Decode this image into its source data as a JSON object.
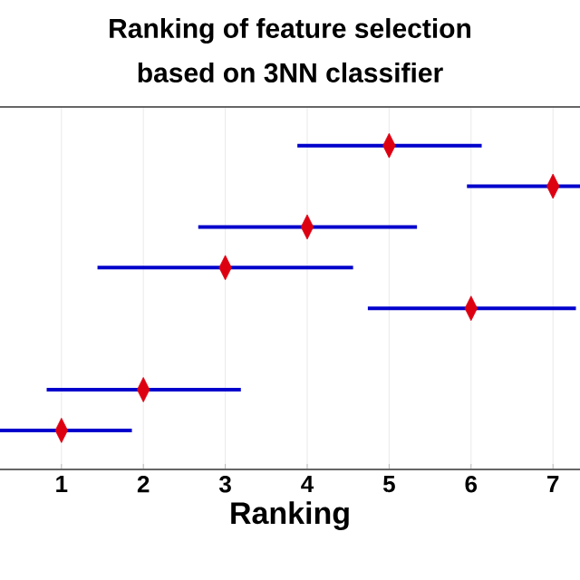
{
  "chart_data": {
    "type": "scatter",
    "orientation": "horizontal",
    "title": "Ranking of feature selection",
    "subtitle": "based on 3NN classifier",
    "xlabel": "Ranking",
    "categories": [
      null,
      null,
      null,
      null,
      null,
      null,
      null,
      null
    ],
    "series": [
      {
        "color": "#dd0011",
        "values": [
          5,
          7,
          4,
          3,
          6,
          null,
          2,
          1
        ],
        "errors": [
          [
            3.88,
            6.13
          ],
          [
            5.95,
            7.33
          ],
          [
            2.67,
            5.34
          ],
          [
            1.44,
            4.56
          ],
          [
            4.74,
            7.28
          ],
          null,
          [
            0.82,
            3.19
          ],
          [
            0.25,
            1.86
          ]
        ]
      }
    ],
    "xlim": [
      0.25,
      7.33
    ],
    "xticks": [
      1,
      2,
      3,
      4,
      5,
      6,
      7
    ],
    "grid": true,
    "marker": "diamond",
    "tick_labels": "x"
  }
}
